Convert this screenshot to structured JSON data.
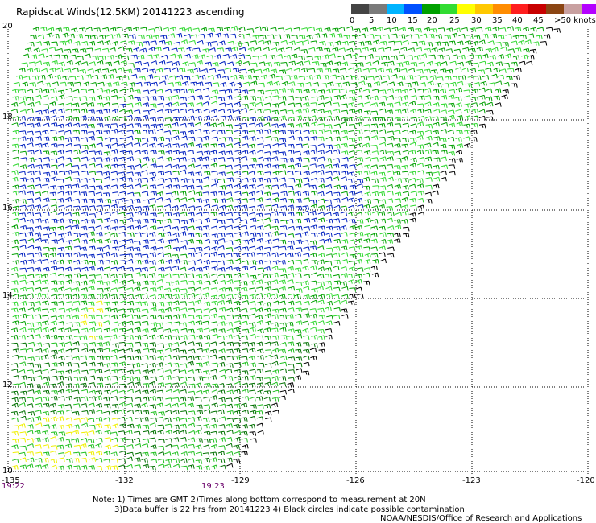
{
  "title": "Rapidscat Winds(12.5KM) 20141223 ascending",
  "colorbar": {
    "colors": [
      "#444444",
      "#7a7a7a",
      "#00b4ff",
      "#0050ff",
      "#00a000",
      "#32dc32",
      "#ffff00",
      "#ffc800",
      "#ff8c00",
      "#ff1e1e",
      "#c80000",
      "#8b4513",
      "#c8a0a0",
      "#b400ff",
      "#5a00a0"
    ],
    "labels": [
      "0",
      "5",
      "10",
      "15",
      "20",
      "25",
      "30",
      "35",
      "40",
      "45",
      ">50 knots"
    ]
  },
  "y_axis": [
    "20",
    "18",
    "16",
    "14",
    "12",
    "10"
  ],
  "x_axis": [
    "-135",
    "-132",
    "-129",
    "-126",
    "-123",
    "-120"
  ],
  "time_labels": [
    "19:22",
    "19:23"
  ],
  "notes": {
    "line1": "Note: 1) Times are GMT 2)Times along bottom correspond to measurement at 20N",
    "line2": "3)Data buffer is 22 hrs from 20141223 4) Black circles indicate possible contamination",
    "line3": "NOAA/NESDIS/Office of Research and Applications"
  }
}
